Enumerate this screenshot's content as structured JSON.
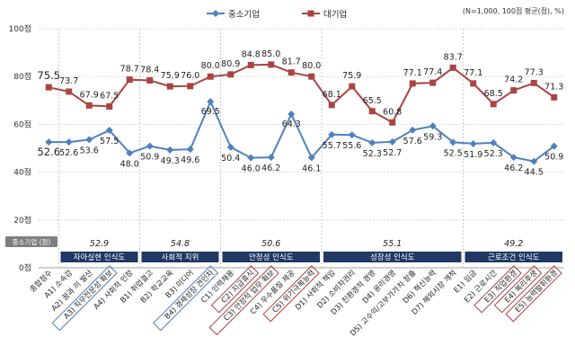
{
  "chart_data": {
    "type": "line",
    "note": "(N=1,000, 100점 평균(점), %)",
    "legend": [
      {
        "name": "중소기업",
        "color": "#4F81BD"
      },
      {
        "name": "대기업",
        "color": "#A94442"
      }
    ],
    "yticks": [
      "0점",
      "20점",
      "40점",
      "60점",
      "80점",
      "100점"
    ],
    "ylim": [
      0,
      100
    ],
    "categories": [
      "종합점수",
      "A1) 소속감",
      "A2) 꿈과 끼 발산",
      "A3) 직무전문성 확보",
      "A4) 사회적 인정",
      "B1) 취업결고",
      "B2) 학교교육",
      "B3) 미디어",
      "B4) 경제성장 견인차",
      "C1) 인력채용",
      "C2) 지급휴식",
      "C3) 안정적 업무 확보",
      "C4) 우수품질 제공",
      "C5) 위기극복능력",
      "D1) 사회적 책임",
      "D2) 소비자권리",
      "D3) 친환경적 경영",
      "D4) 윤리경영",
      "D5) 고수익/고부가가치 창출",
      "D6) 혁신능력",
      "D7) 해외시장 개척",
      "E1) 임금",
      "E2) 근로시간",
      "E3) 직업환경",
      "E4) 복리후생",
      "E5) 능력발휘환경"
    ],
    "series": [
      {
        "name": "중소기업",
        "color": "#4F81BD",
        "values": [
          52.6,
          52.6,
          53.6,
          57.5,
          48.0,
          50.9,
          49.3,
          49.6,
          69.5,
          50.4,
          46.0,
          46.2,
          64.3,
          46.1,
          55.7,
          55.6,
          52.3,
          52.7,
          57.6,
          59.3,
          52.5,
          51.9,
          52.3,
          46.2,
          44.5,
          50.9
        ],
        "labels": [
          "52.6",
          "52.6",
          "53.6",
          "57.5",
          "48.0",
          "50.9",
          "49.3",
          "49.6",
          "69.5",
          "50.4",
          "46.0",
          "46.2",
          "64.3",
          "46.1",
          "55.7",
          "55.6",
          "52.3",
          "52.7",
          "57.6",
          "59.3",
          "52.5",
          "51.9",
          "52.3",
          "46.2",
          "44.5",
          "50.9"
        ]
      },
      {
        "name": "대기업",
        "color": "#A94442",
        "values": [
          75.5,
          73.7,
          67.9,
          67.5,
          78.7,
          78.4,
          75.9,
          76.0,
          80.0,
          80.9,
          84.8,
          85.0,
          81.7,
          80.0,
          68.1,
          75.9,
          65.5,
          60.8,
          77.1,
          77.4,
          83.7,
          77.1,
          68.5,
          74.2,
          77.3,
          71.3
        ],
        "labels": [
          "75.5",
          "73.7",
          "67.9",
          "67.5",
          "78.7",
          "78.4",
          "75.9",
          "76.0",
          "80.0",
          "80.9",
          "84.8",
          "85.0",
          "81.7",
          "80.0",
          "68.1",
          "75.9",
          "65.5",
          "60.8",
          "77.1",
          "77.4",
          "83.7",
          "77.1",
          "68.5",
          "74.2",
          "77.3",
          "71.3"
        ]
      }
    ],
    "sme_badge": "중소기업 (점)",
    "groups": [
      {
        "name": "자아실현 인식도",
        "score": "52.9"
      },
      {
        "name": "사회적 지위",
        "score": "54.8"
      },
      {
        "name": "안정성 인식도",
        "score": "50.6"
      },
      {
        "name": "성장성 인식도",
        "score": "55.1"
      },
      {
        "name": "근로조건 인식도",
        "score": "49.2"
      }
    ],
    "boxed": [
      {
        "name": "A3) 직무전문성 확보",
        "color": "#4F81BD"
      },
      {
        "name": "B4) 경제성장 견인차",
        "color": "#4F81BD"
      },
      {
        "name": "C2) 지급휴식",
        "color": "#A94442"
      },
      {
        "name": "C3) 안정적 업무 확보",
        "color": "#A94442"
      },
      {
        "name": "C5) 위기극복능력",
        "color": "#A94442"
      },
      {
        "name": "E3) 직업환경",
        "color": "#A94442"
      },
      {
        "name": "E4) 복리후생",
        "color": "#A94442"
      },
      {
        "name": "E5) 능력발휘환경",
        "color": "#A94442"
      }
    ]
  }
}
